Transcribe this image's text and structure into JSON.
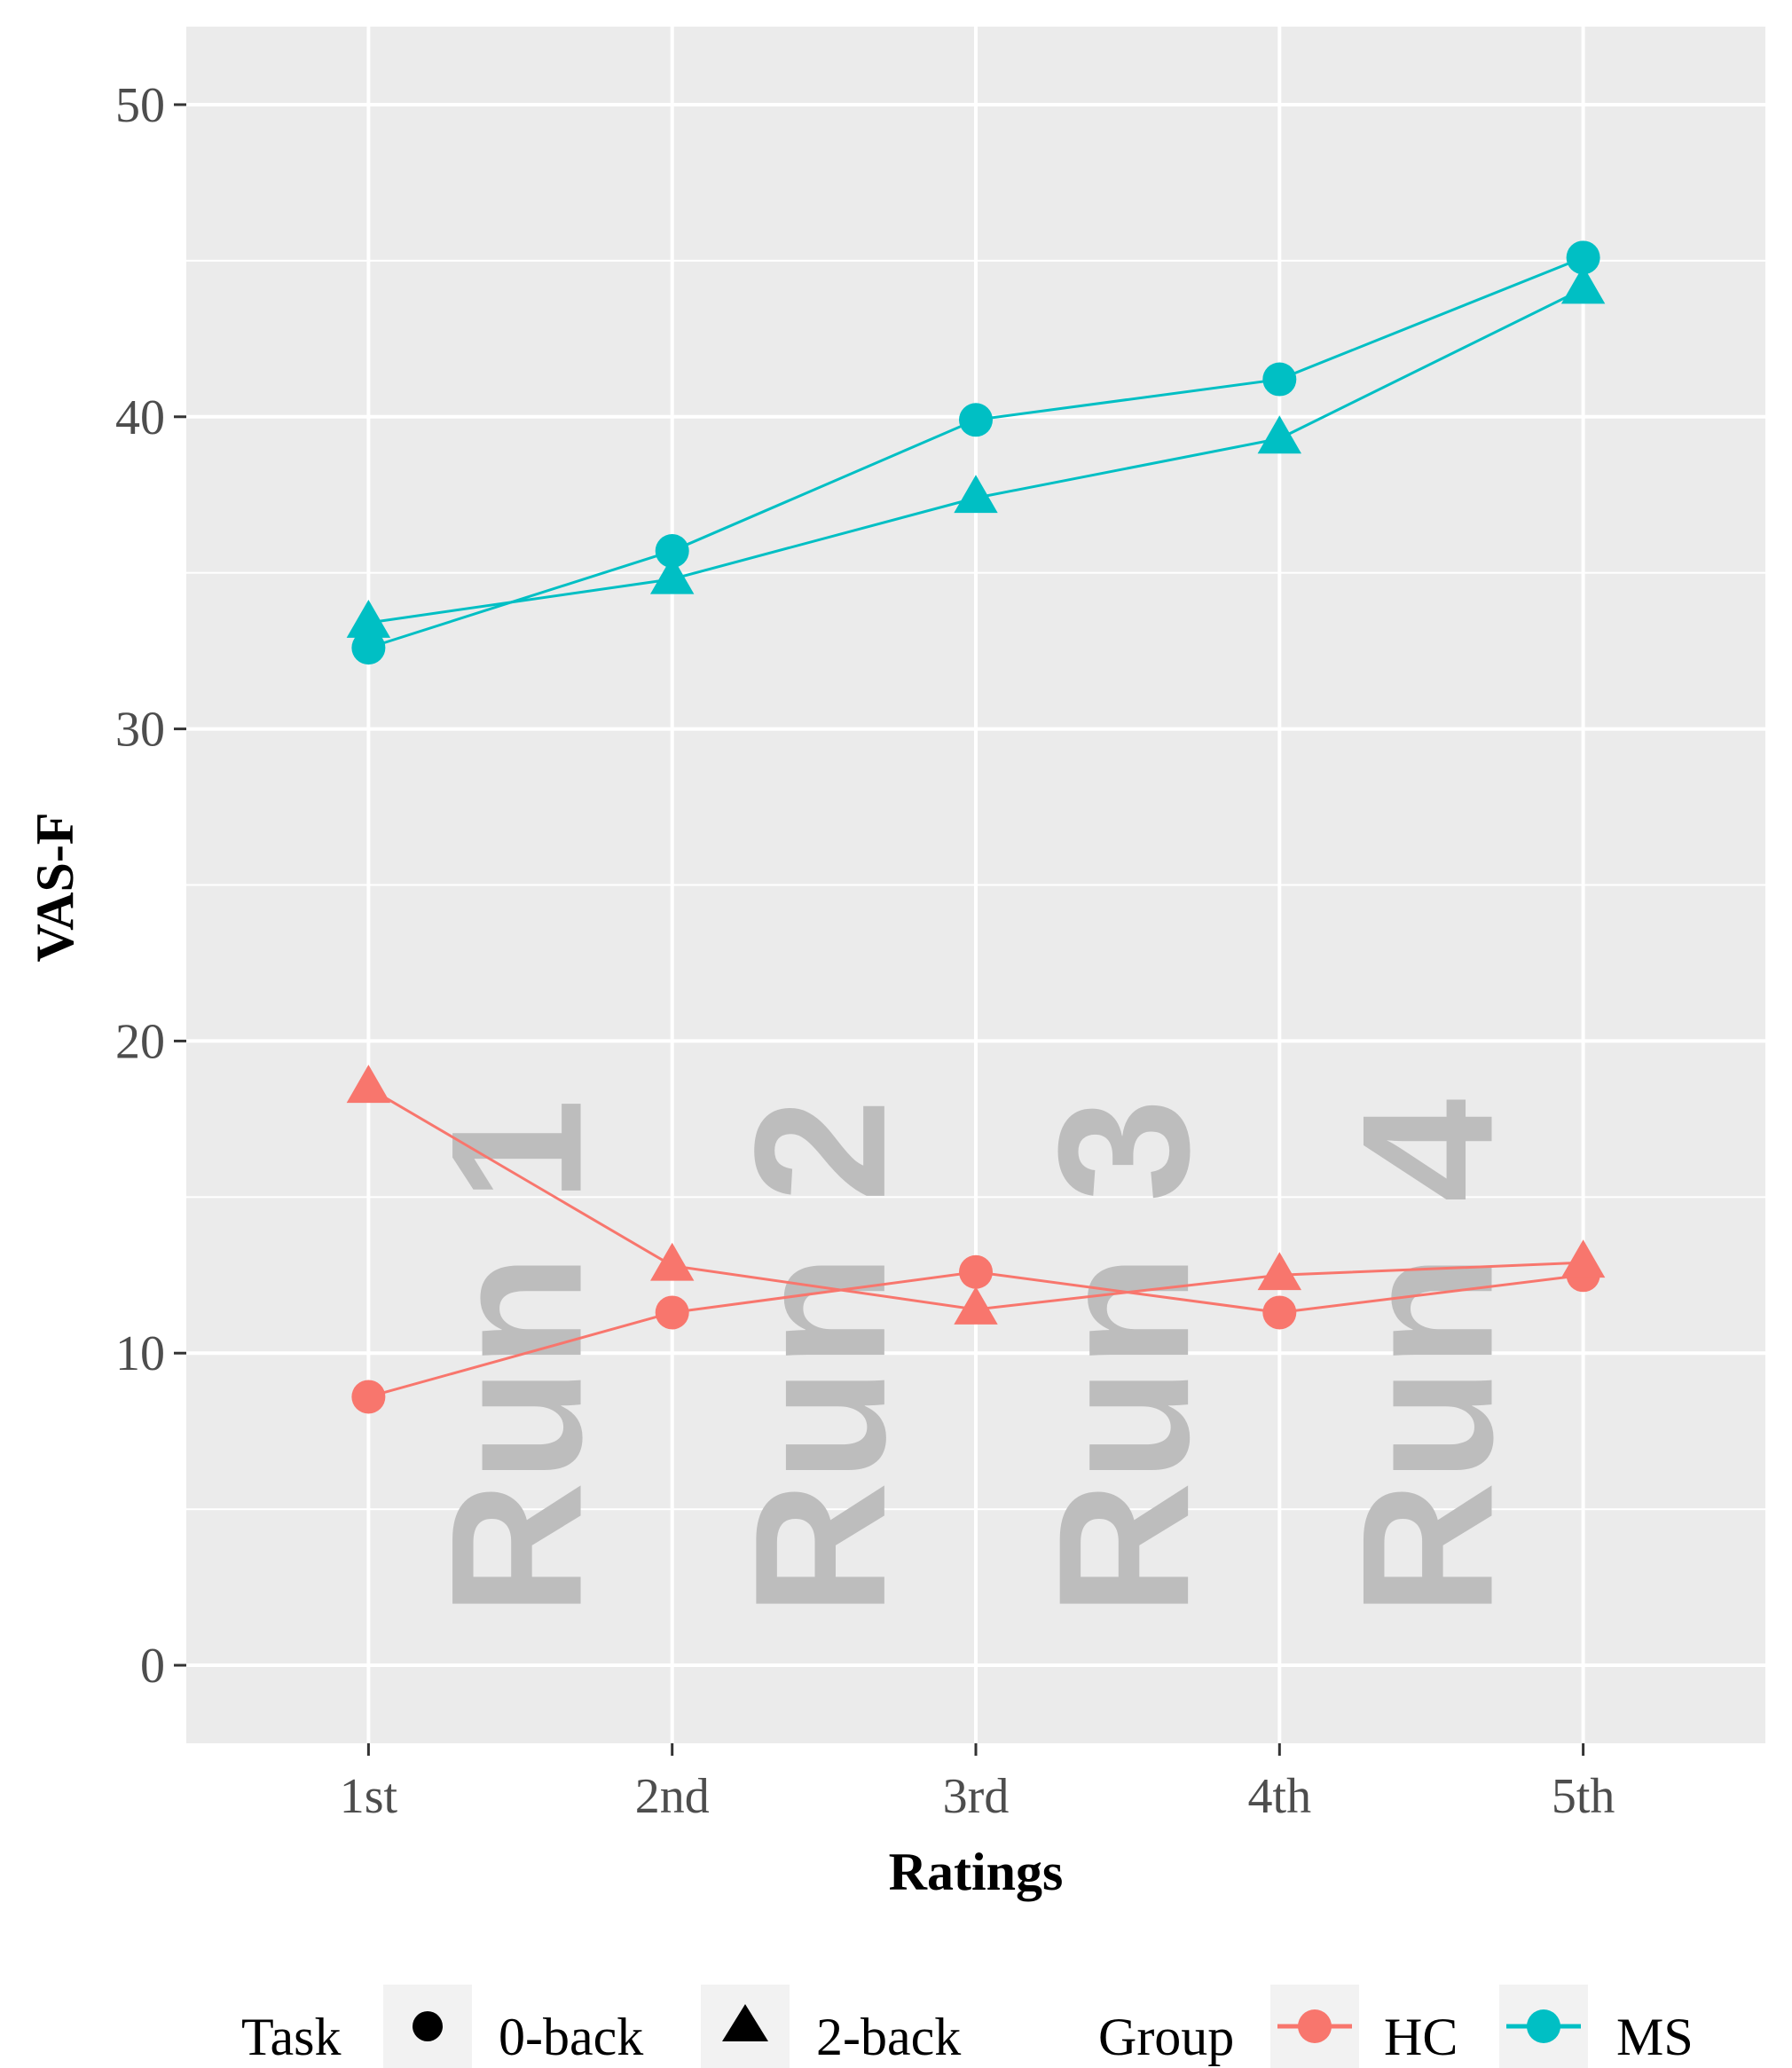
{
  "chart_data": {
    "type": "line",
    "categories": [
      "1st",
      "2nd",
      "3rd",
      "4th",
      "5th"
    ],
    "xlabel": "Ratings",
    "ylabel": "VAS-F",
    "ylim": [
      -2.5,
      52.5
    ],
    "yticks": [
      0,
      10,
      20,
      30,
      40,
      50
    ],
    "grid": true,
    "legend_position": "bottom",
    "task_legend": {
      "title": "Task",
      "items": [
        "0-back",
        "2-back"
      ]
    },
    "group_legend": {
      "title": "Group",
      "items": [
        "HC",
        "MS"
      ]
    },
    "colors": {
      "HC": "#f8766d",
      "MS": "#00bfc4",
      "panel": "#ebebeb",
      "grid": "#ffffff"
    },
    "annotations": [
      "Run 1",
      "Run 2",
      "Run 3",
      "Run 4"
    ],
    "series": [
      {
        "group": "MS",
        "task": "0-back",
        "marker": "circle",
        "values": [
          32.6,
          35.7,
          39.9,
          41.2,
          45.1
        ]
      },
      {
        "group": "MS",
        "task": "2-back",
        "marker": "triangle",
        "values": [
          33.4,
          34.8,
          37.4,
          39.3,
          44.1
        ]
      },
      {
        "group": "HC",
        "task": "0-back",
        "marker": "circle",
        "values": [
          8.6,
          11.3,
          12.6,
          11.3,
          12.5
        ]
      },
      {
        "group": "HC",
        "task": "2-back",
        "marker": "triangle",
        "values": [
          18.5,
          12.8,
          11.4,
          12.5,
          12.9
        ]
      }
    ]
  }
}
